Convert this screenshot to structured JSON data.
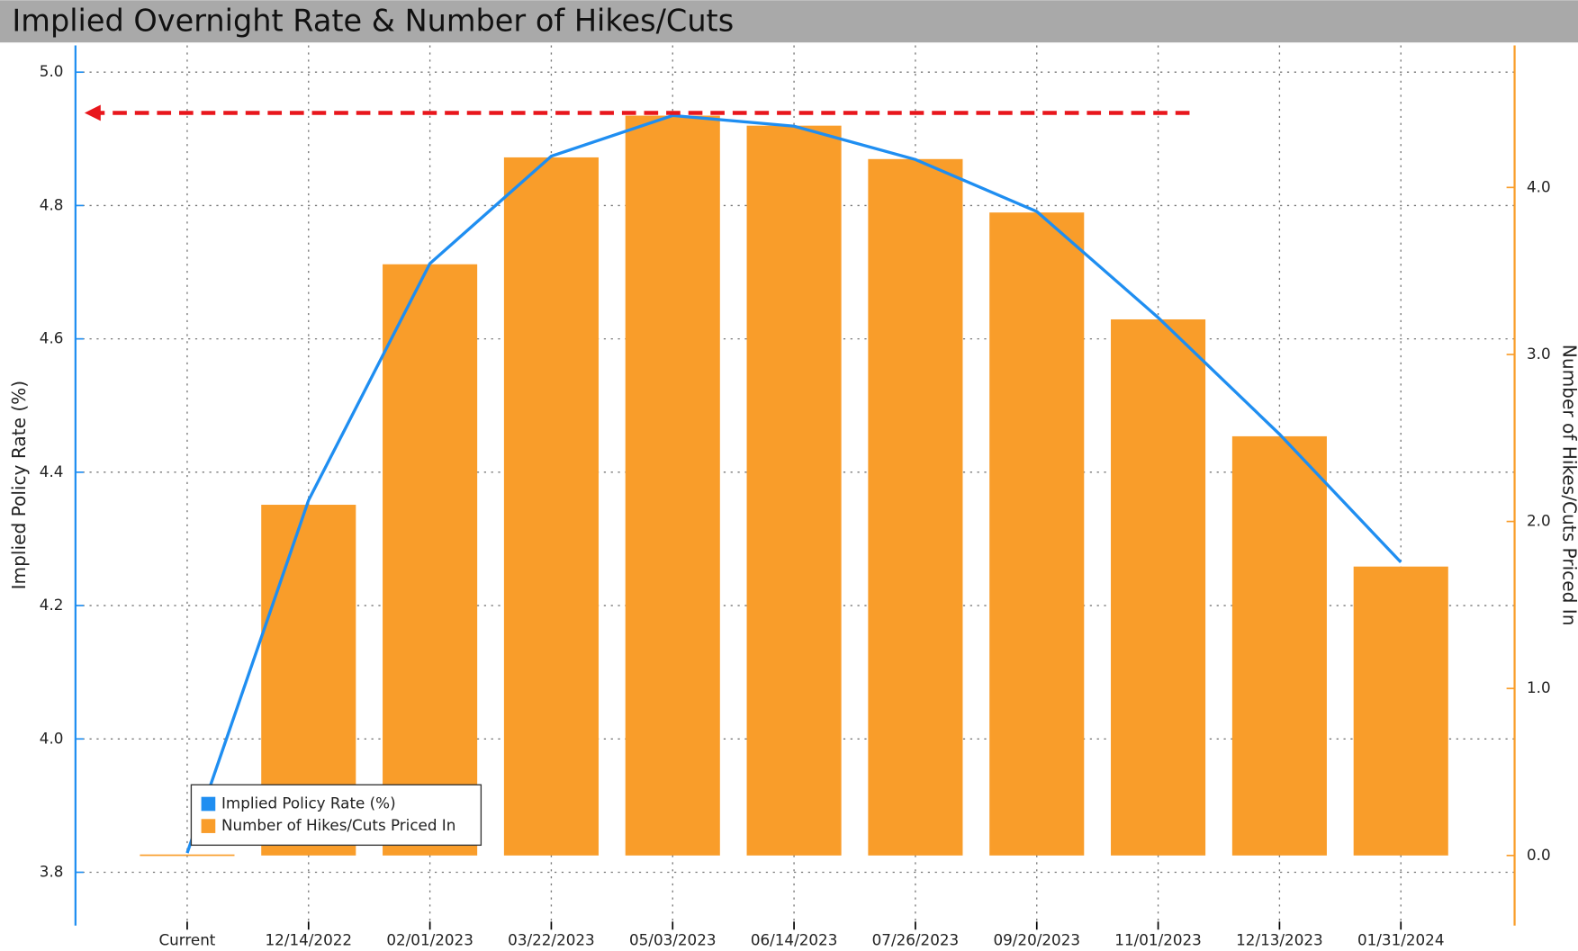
{
  "chart_data": {
    "type": "bar-line",
    "title": "Implied Overnight Rate & Number of Hikes/Cuts",
    "categories": [
      "Current",
      "12/14/2022",
      "02/01/2023",
      "03/22/2023",
      "05/03/2023",
      "06/14/2023",
      "07/26/2023",
      "09/20/2023",
      "11/01/2023",
      "12/13/2023",
      "01/31/2024"
    ],
    "series": [
      {
        "name": "Implied Policy Rate (%)",
        "type": "line",
        "axis": "y",
        "color": "#1f8ef1",
        "values": [
          3.829,
          4.358,
          4.713,
          4.874,
          4.935,
          4.919,
          4.869,
          4.791,
          4.632,
          4.457,
          4.265
        ]
      },
      {
        "name": "Number of Hikes/Cuts Priced In",
        "type": "bar",
        "axis": "y2",
        "color": "#f99d2a",
        "values": [
          0,
          2.1,
          3.54,
          4.18,
          4.43,
          4.37,
          4.17,
          3.85,
          3.21,
          2.51,
          1.73
        ]
      }
    ],
    "ylabel": "Implied Policy Rate (%)",
    "y2label": "Number of Hikes/Cuts Priced In",
    "ylim": [
      3.72,
      5.04
    ],
    "yticks": [
      3.8,
      {
        "value": 4,
        "label": "4.0"
      },
      4.2,
      4.4,
      4.6,
      4.8,
      {
        "value": 5,
        "label": "5.0"
      }
    ],
    "y2lim": [
      -0.42,
      4.85
    ],
    "y2ticks": [
      {
        "value": 0,
        "label": "0.0"
      },
      {
        "value": 1,
        "label": "1.0"
      },
      {
        "value": 2,
        "label": "2.0"
      },
      {
        "value": 3,
        "label": "3.0"
      },
      {
        "value": 4,
        "label": "4.0"
      }
    ],
    "grid": true,
    "legend": "lower left"
  }
}
